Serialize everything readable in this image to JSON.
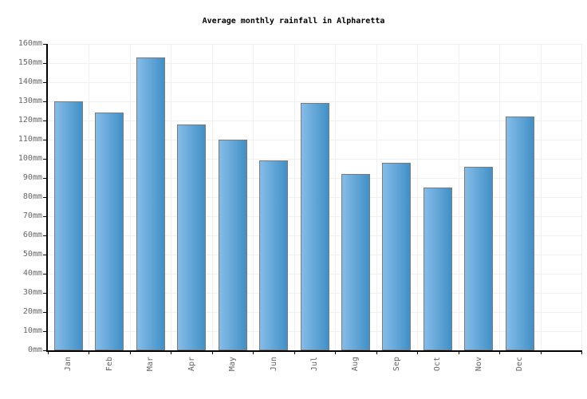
{
  "chart_data": {
    "type": "bar",
    "title": "Average monthly rainfall in Alpharetta",
    "unit": "mm",
    "categories": [
      "Jan",
      "Feb",
      "Mar",
      "Apr",
      "May",
      "Jun",
      "Jul",
      "Aug",
      "Sep",
      "Oct",
      "Nov",
      "Dec"
    ],
    "values": [
      130,
      124,
      153,
      118,
      110,
      99,
      129,
      92,
      98,
      85,
      96,
      122
    ],
    "xlabel": "",
    "ylabel": "",
    "ylim": [
      0,
      160
    ],
    "ytick_step": 10,
    "ytick_labels": [
      "0mm",
      "10mm",
      "20mm",
      "30mm",
      "40mm",
      "50mm",
      "60mm",
      "70mm",
      "80mm",
      "90mm",
      "100mm",
      "110mm",
      "120mm",
      "130mm",
      "140mm",
      "150mm",
      "160mm"
    ],
    "grid": true,
    "legend": "none",
    "colors": {
      "bar_gradient_start": "#85bce8",
      "bar_gradient_end": "#4190c7",
      "bar_border": "#7b7b7b",
      "grid": "#f0f0f0",
      "axis": "#000000",
      "tick_label": "#666666",
      "title": "#000000",
      "background": "#ffffff"
    }
  }
}
